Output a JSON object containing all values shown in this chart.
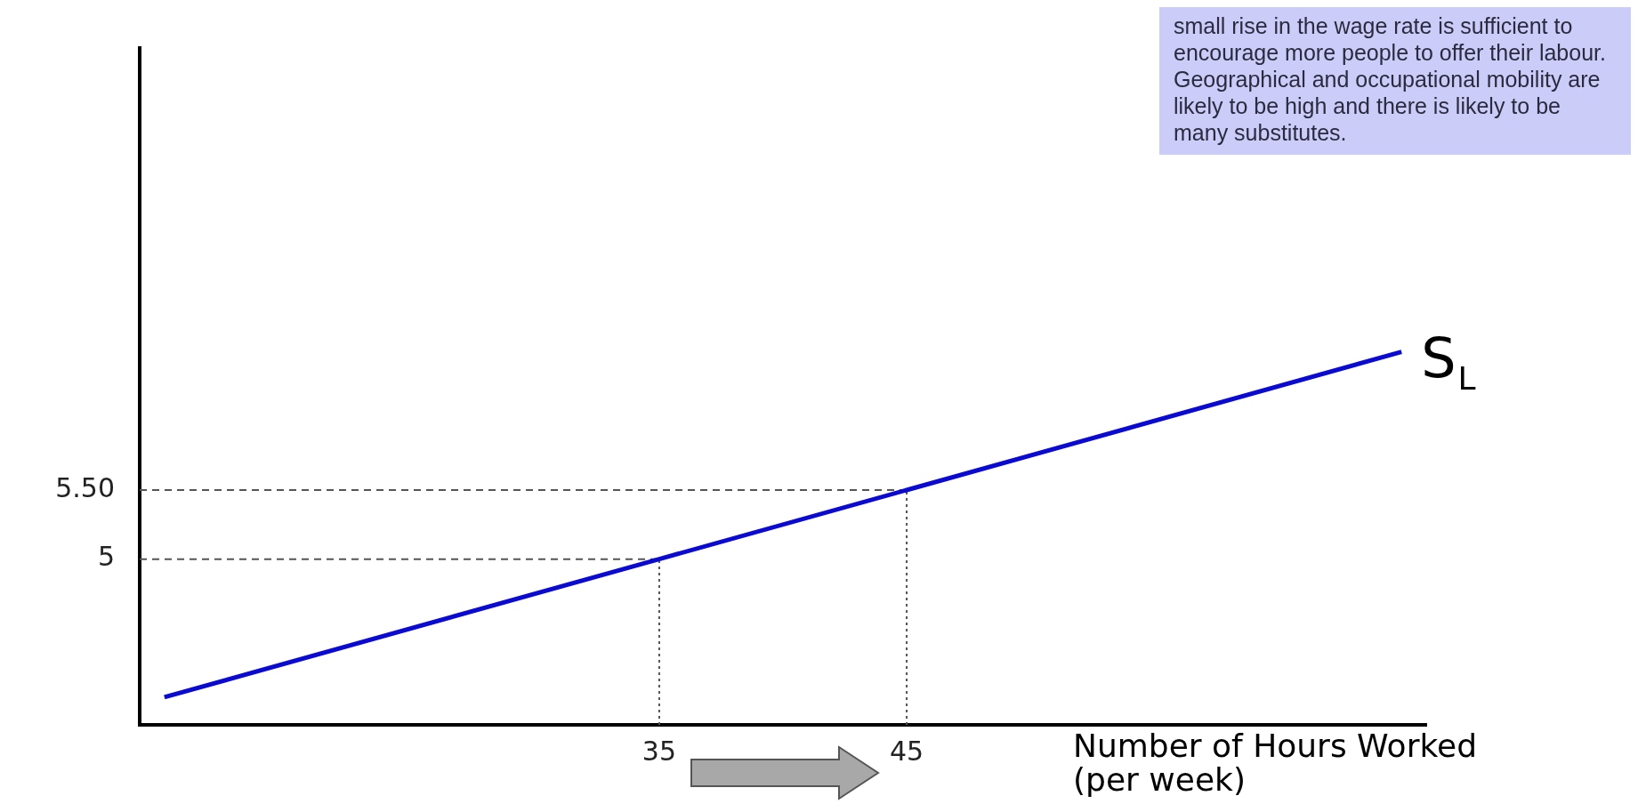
{
  "chart_data": {
    "type": "line",
    "xlabel": "Number of Hours Worked (per week)",
    "x": [
      15,
      35,
      45,
      65
    ],
    "series": [
      {
        "name": "S$_{L}$",
        "color": "#0a0ad2",
        "values": [
          4,
          5,
          5.5,
          6.5
        ]
      }
    ],
    "xlim": [
      14,
      66
    ],
    "ylim": [
      3.8,
      8.7
    ],
    "xticks": [
      35,
      45
    ],
    "yticks": [
      5,
      {
        "value": 5.5,
        "label": "5.50"
      }
    ],
    "grid": false,
    "legend": false,
    "marker": "none",
    "line_style": "solid",
    "ref_lines": [
      {
        "axis": "x",
        "value": 35,
        "color": "#555555",
        "line_style": "dotted"
      },
      {
        "axis": "x",
        "value": 45,
        "color": "#555555",
        "line_style": "dotted"
      },
      {
        "axis": "y",
        "value": 5,
        "color": "#555555",
        "line_style": "dashed"
      },
      {
        "axis": "y",
        "value": 5.5,
        "color": "#555555",
        "line_style": "dashed"
      }
    ],
    "annotations": [
      "small rise in the wage rate is sufficient to encourage more people to offer their labour. Geographical and occupational mobility are likely to be high and there is likely to be many substitutes."
    ]
  }
}
